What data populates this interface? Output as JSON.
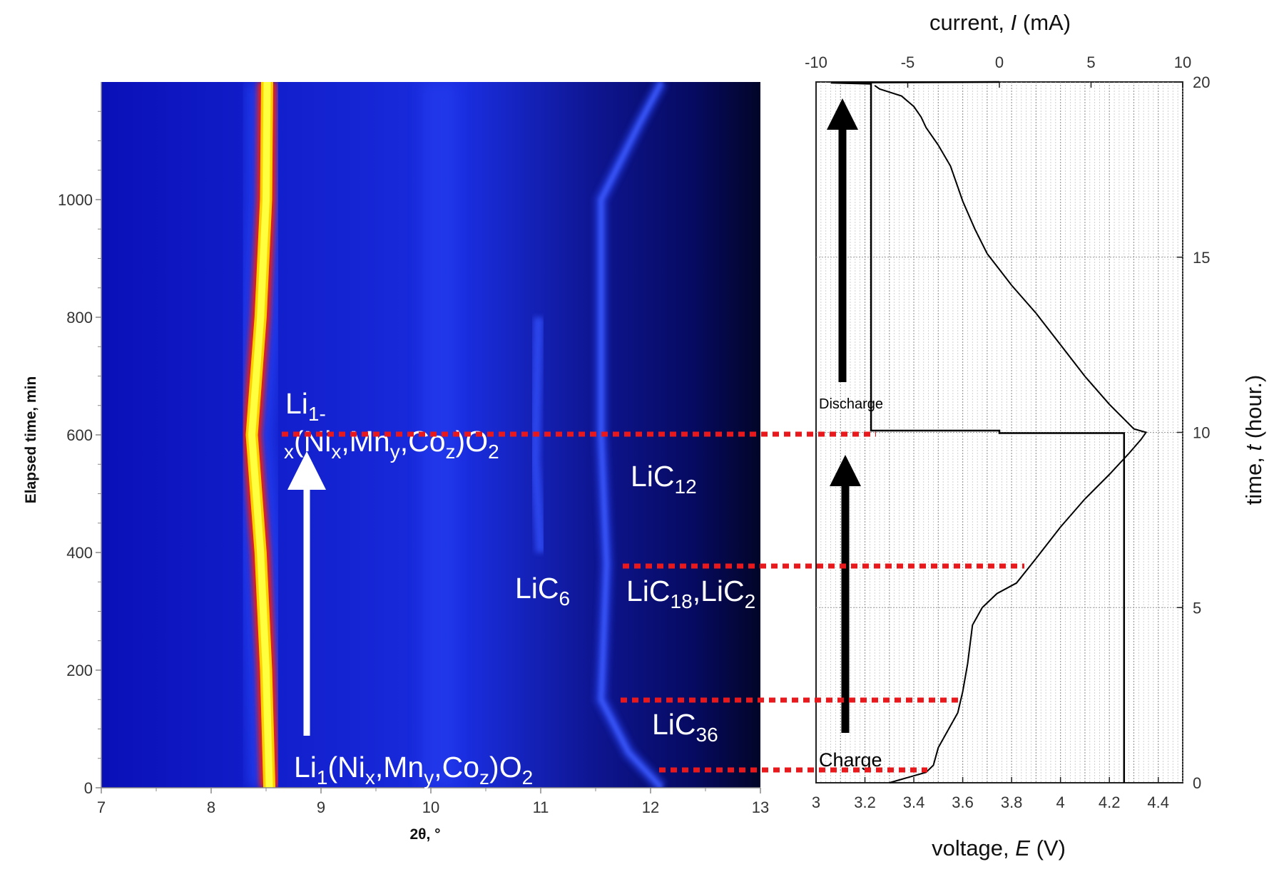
{
  "chart_data": [
    {
      "type": "heatmap",
      "xlabel": "2θ, °",
      "ylabel": "Elapsed time, min",
      "xlim": [
        7,
        13
      ],
      "ylim": [
        0,
        1200
      ],
      "x_ticks": [
        "7",
        "8",
        "9",
        "10",
        "11",
        "12",
        "13"
      ],
      "y_ticks": [
        "0",
        "200",
        "400",
        "600",
        "800",
        "1000"
      ],
      "colormap": [
        "#0b0fb8",
        "#2b4bff",
        "#ff1a00",
        "#ffd000",
        "#ffff40"
      ],
      "peaks": [
        {
          "name": "cathode",
          "points": [
            [
              8.53,
              0
            ],
            [
              8.5,
              200
            ],
            [
              8.45,
              400
            ],
            [
              8.37,
              600
            ],
            [
              8.45,
              800
            ],
            [
              8.5,
              1000
            ],
            [
              8.51,
              1200
            ]
          ]
        },
        {
          "name": "graphite",
          "points": [
            [
              12.1,
              0
            ],
            [
              11.8,
              60
            ],
            [
              11.55,
              150
            ],
            [
              11.6,
              380
            ],
            [
              11.55,
              600
            ],
            [
              11.55,
              1000
            ],
            [
              11.9,
              1130
            ],
            [
              12.1,
              1200
            ]
          ]
        },
        {
          "name": "LiC6",
          "points": [
            [
              11.0,
              400
            ],
            [
              10.95,
              560
            ],
            [
              10.98,
              800
            ]
          ]
        }
      ],
      "labels": {
        "delithiated_main": "Li",
        "delithiated_sub": "1-",
        "delithiated_line2_prefix": "x",
        "formula_open": "(Ni",
        "formula_x": "x",
        "formula_mn": ",Mn",
        "formula_y": "y",
        "formula_co": ",Co",
        "formula_z": "z",
        "formula_close": ")O",
        "formula_two": "2",
        "pristine_main": "Li",
        "pristine_sub": "1",
        "lic12_main": "LiC",
        "lic12_sub": "12",
        "lic6_main": "LiC",
        "lic6_sub": "6",
        "lic18_main": "LiC",
        "lic18_sub": "18",
        "lic2_main": ",LiC",
        "lic2_sub": "2",
        "lic36_main": "LiC",
        "lic36_sub": "36"
      }
    },
    {
      "type": "line",
      "top_axis_label_prefix": "current, ",
      "top_axis_label_var": "I",
      "top_axis_label_suffix": " (mA)",
      "bottom_axis_label_prefix": "voltage, ",
      "bottom_axis_label_var": "E",
      "bottom_axis_label_suffix": " (V)",
      "right_axis_label_prefix": "time, ",
      "right_axis_label_var": "t",
      "right_axis_label_suffix": " (hour.)",
      "voltage_lim": [
        3.0,
        4.5
      ],
      "current_lim": [
        -10,
        10
      ],
      "time_lim": [
        0,
        20
      ],
      "voltage_ticks": [
        "3",
        "3.2",
        "3.4",
        "3.6",
        "3.8",
        "4",
        "4.2",
        "4.4"
      ],
      "current_ticks": [
        "-10",
        "-5",
        "0",
        "5",
        "10"
      ],
      "time_ticks": [
        "0",
        "5",
        "10",
        "15",
        "20"
      ],
      "grid": true,
      "series": [
        {
          "quantity": "voltage",
          "points": [
            [
              3.3,
              0.0
            ],
            [
              3.45,
              0.3
            ],
            [
              3.48,
              0.5
            ],
            [
              3.5,
              1.0
            ],
            [
              3.58,
              2.0
            ],
            [
              3.6,
              2.6
            ],
            [
              3.62,
              3.4
            ],
            [
              3.64,
              4.5
            ],
            [
              3.68,
              5.0
            ],
            [
              3.74,
              5.4
            ],
            [
              3.82,
              5.7
            ],
            [
              3.9,
              6.4
            ],
            [
              4.0,
              7.3
            ],
            [
              4.1,
              8.1
            ],
            [
              4.2,
              8.8
            ],
            [
              4.28,
              9.4
            ],
            [
              4.33,
              9.8
            ],
            [
              4.35,
              10.0
            ],
            [
              4.3,
              10.1
            ],
            [
              4.2,
              10.8
            ],
            [
              4.1,
              11.6
            ],
            [
              4.0,
              12.5
            ],
            [
              3.9,
              13.4
            ],
            [
              3.8,
              14.2
            ],
            [
              3.7,
              15.1
            ],
            [
              3.65,
              15.8
            ],
            [
              3.6,
              16.6
            ],
            [
              3.55,
              17.6
            ],
            [
              3.5,
              18.2
            ],
            [
              3.45,
              18.7
            ],
            [
              3.43,
              19.0
            ],
            [
              3.4,
              19.3
            ],
            [
              3.35,
              19.6
            ],
            [
              3.26,
              19.8
            ],
            [
              3.24,
              19.9
            ]
          ]
        },
        {
          "quantity": "current",
          "points": [
            [
              6.8,
              0.0
            ],
            [
              6.8,
              9.98
            ],
            [
              0.0,
              9.98
            ],
            [
              0.0,
              10.05
            ],
            [
              -7.0,
              10.05
            ],
            [
              -7.0,
              19.95
            ],
            [
              -9.2,
              19.98
            ],
            [
              0.0,
              20.0
            ]
          ]
        }
      ],
      "annotations": {
        "discharge": "Discharge",
        "charge": "Charge"
      }
    }
  ]
}
